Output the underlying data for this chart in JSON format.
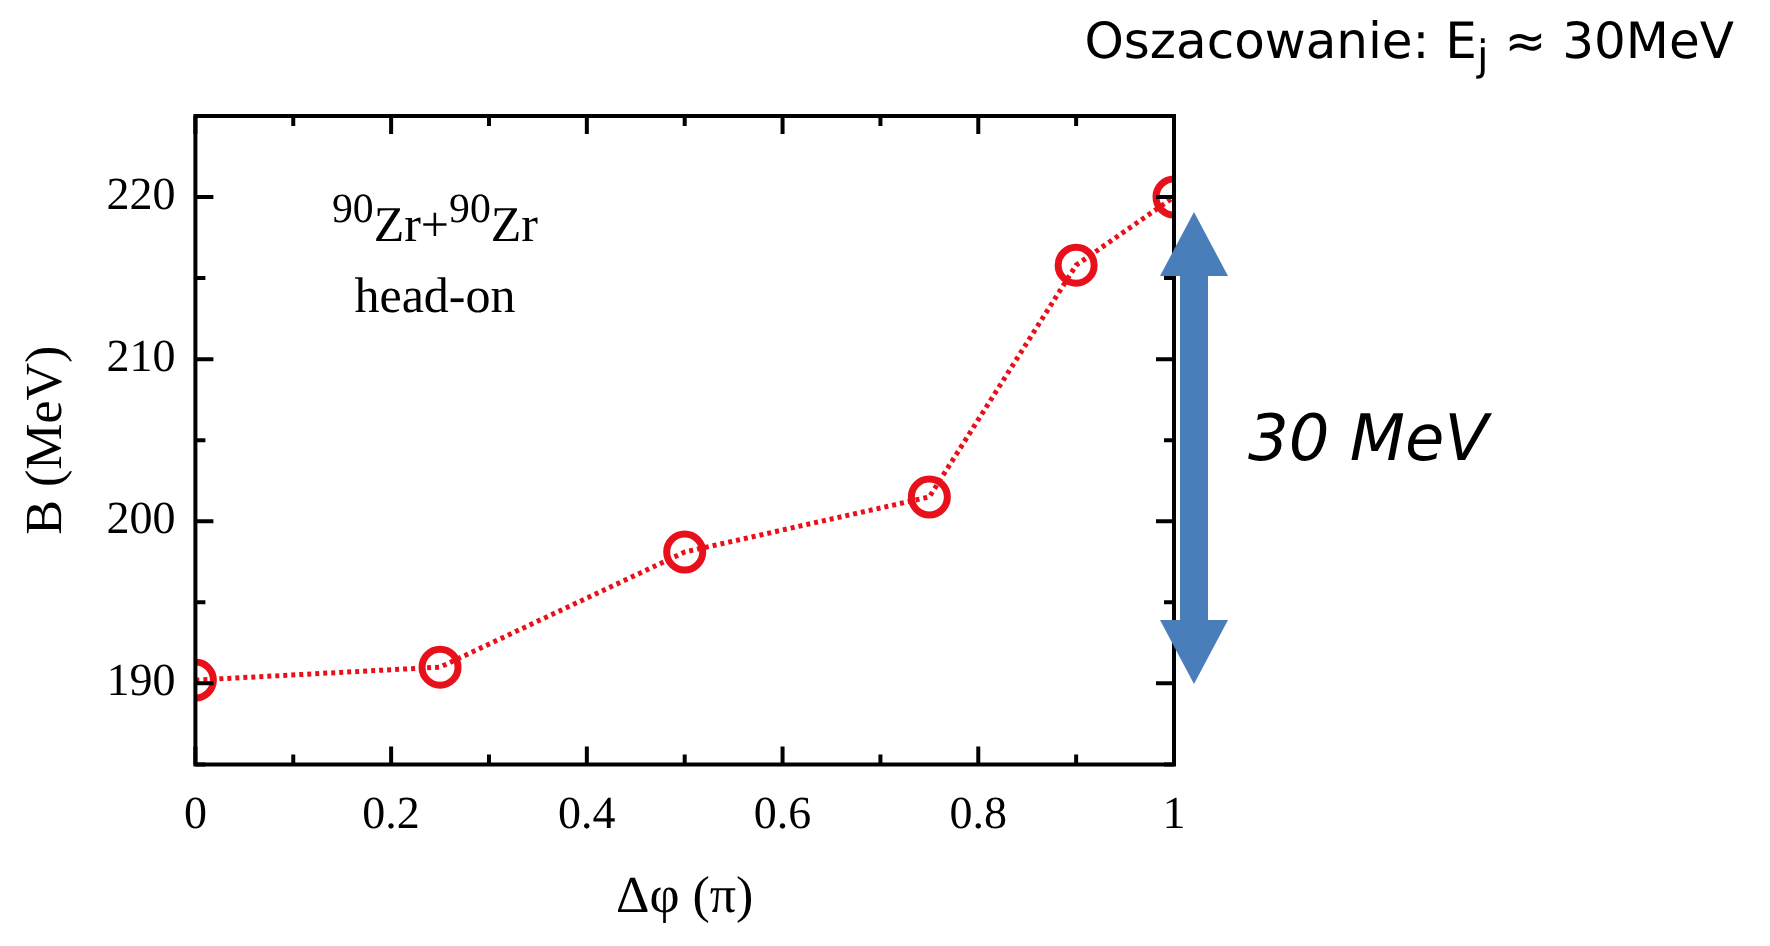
{
  "chart_data": {
    "type": "line",
    "title": "Oszacowanie: E$_{j}$ ≈ 30MeV",
    "xlabel": "Δφ (π)",
    "ylabel": "B (MeV)",
    "annotations": [
      "$^{90}$Zr+$^{90}$Zr",
      "head-on",
      "30 MeV"
    ],
    "x": [
      0,
      0.25,
      0.5,
      0.75,
      0.9,
      1
    ],
    "series": [
      {
        "color": "#e8101a",
        "values": [
          190.2,
          191.0,
          198.1,
          201.5,
          215.8,
          220
        ]
      }
    ],
    "xlim": [
      0,
      1
    ],
    "xticks": [
      0,
      {
        "value": 0.1,
        "label": null
      },
      0.2,
      {
        "value": 0.3,
        "label": null
      },
      0.4,
      {
        "value": 0.5,
        "label": null
      },
      0.6,
      {
        "value": 0.7,
        "label": null
      },
      0.8,
      {
        "value": 0.9,
        "label": null
      },
      1
    ],
    "ylim": [
      185,
      225
    ],
    "yticks": [
      {
        "value": 185,
        "label": null
      },
      190,
      {
        "value": 195,
        "label": null
      },
      200,
      {
        "value": 205,
        "label": null
      },
      210,
      {
        "value": 215,
        "label": null
      },
      220,
      {
        "value": 225,
        "label": null
      }
    ],
    "marker": "circle",
    "line_style": "dotted",
    "legend": false
  }
}
